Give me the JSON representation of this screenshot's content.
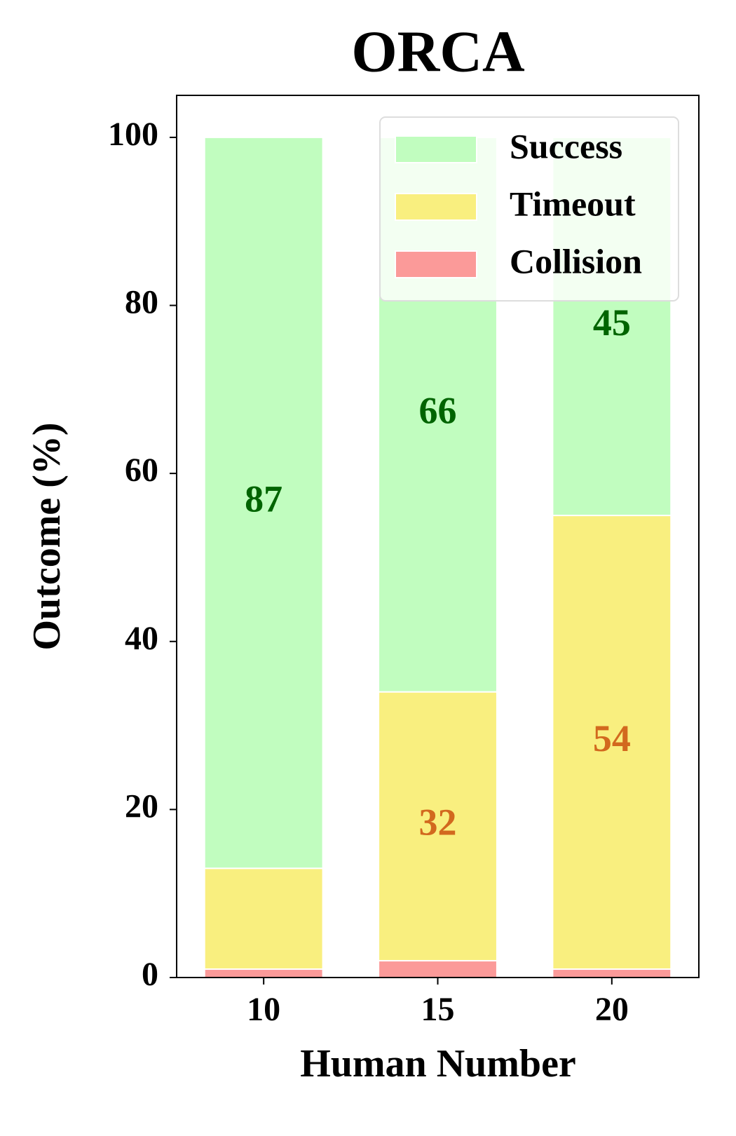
{
  "chart_data": {
    "type": "bar",
    "stacked": true,
    "title": "ORCA",
    "x_label": "Human Number",
    "y_label": "Outcome (%)",
    "categories": [
      "10",
      "15",
      "20"
    ],
    "series": [
      {
        "name": "Collision",
        "color": "#fb9a99",
        "label_color": "#8b0000",
        "values": [
          1,
          2,
          1
        ]
      },
      {
        "name": "Timeout",
        "color": "#f9ef7f",
        "label_color": "#d2691e",
        "values": [
          12,
          32,
          54
        ]
      },
      {
        "name": "Success",
        "color": "#c1fdbf",
        "label_color": "#006400",
        "values": [
          87,
          66,
          45
        ]
      }
    ],
    "ylim": [
      0,
      105
    ],
    "yticks": [
      0,
      20,
      40,
      60,
      80,
      100
    ],
    "legend": "upper right"
  }
}
